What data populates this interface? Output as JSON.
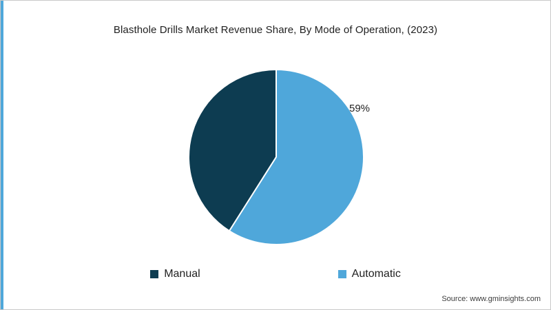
{
  "colors": {
    "accent": "#4fa7da",
    "border": "#c9c9c9",
    "manual_slice": "#0d3c51",
    "automatic_slice": "#4fa7da"
  },
  "footer": {
    "source": "Source: www.gminsights.com"
  },
  "chart_data": {
    "type": "pie",
    "title": "Blasthole Drills Market Revenue Share, By Mode of Operation, (2023)",
    "start_angle_deg": 0,
    "direction": "ccw",
    "legend_position": "bottom",
    "slices": [
      {
        "label": "Manual",
        "value": 41,
        "color": "#0d3c51",
        "data_label": ""
      },
      {
        "label": "Automatic",
        "value": 59,
        "color": "#4fa7da",
        "data_label": "59%"
      }
    ]
  }
}
